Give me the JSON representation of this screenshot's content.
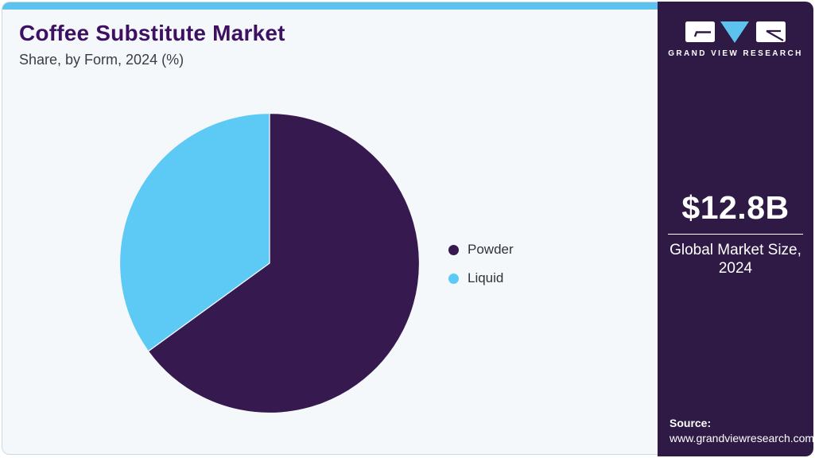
{
  "header": {
    "title": "Coffee Substitute Market",
    "subtitle": "Share, by Form, 2024 (%)"
  },
  "chart_data": {
    "type": "pie",
    "title": "Coffee Substitute Market Share, by Form, 2024 (%)",
    "categories": [
      "Powder",
      "Liquid"
    ],
    "values": [
      65,
      35
    ],
    "colors": [
      "#36194e",
      "#5ccaf5"
    ],
    "start_angle_deg": 0,
    "direction": "clockwise",
    "legend_position": "right",
    "separator_color": "#f4f8fb"
  },
  "sidebar": {
    "logo_text": "GRAND VIEW RESEARCH",
    "market_size_value": "$12.8B",
    "market_size_label_line1": "Global Market Size,",
    "market_size_label_line2": "2024",
    "source_label": "Source:",
    "source_url": "www.grandviewresearch.com"
  },
  "colors": {
    "topbar_blue": "#5cc3ee",
    "main_background": "#f4f8fb",
    "card_border": "#ccd8e2",
    "sidebar_purple": "#2f1a45",
    "title_purple": "#3e1062",
    "pie_purple": "#36194e",
    "pie_blue": "#5ccaf5",
    "logo_triangle_blue": "#5cc3ee"
  }
}
